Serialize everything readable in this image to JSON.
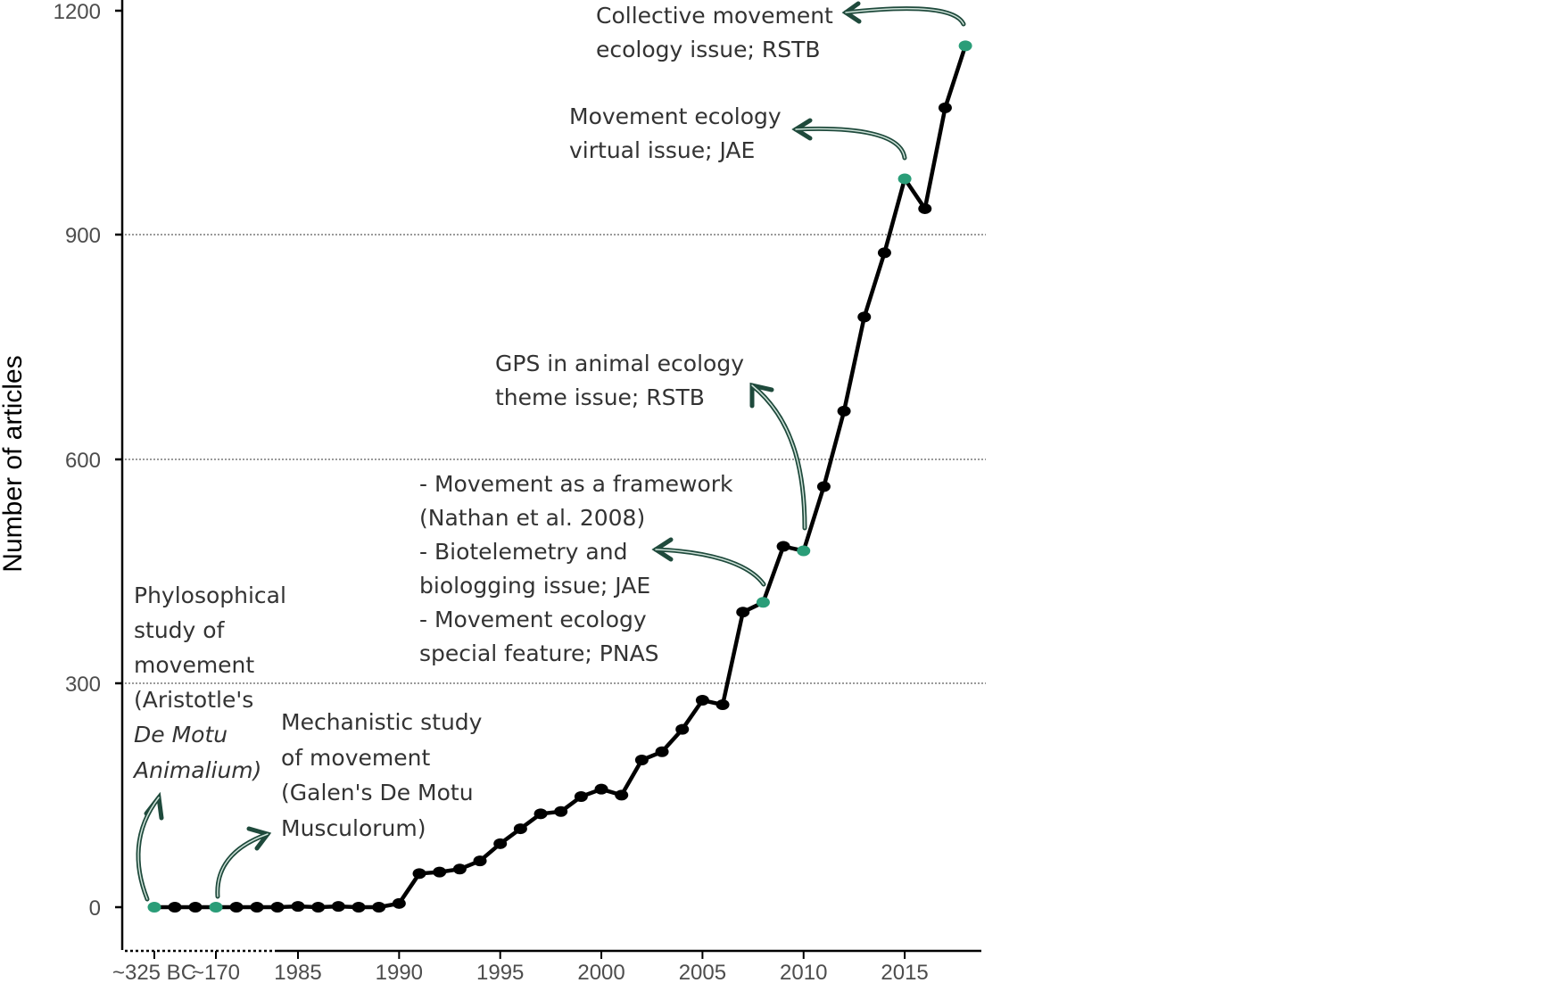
{
  "chart_data": {
    "type": "line",
    "ylabel": "Number of articles",
    "xlabel": "",
    "ylim": [
      -50,
      1200
    ],
    "y_ticks": [
      "0",
      "300",
      "600",
      "900",
      "1200"
    ],
    "x_tick_labels": [
      "~325 BC",
      "~170",
      "1985",
      "1990",
      "1995",
      "2000",
      "2005",
      "2010",
      "2015"
    ],
    "grid": "horizontal dotted at 300, 600, 900",
    "colors": {
      "line": "#000000",
      "point": "#000000",
      "highlight": "#2a9d78",
      "arrow": "#1f4a3c"
    },
    "pre_modern_points": [
      {
        "x": "~325 BC",
        "y": 0,
        "highlight": true
      },
      {
        "x": "filler",
        "y": 0,
        "highlight": false
      },
      {
        "x": "filler",
        "y": 0,
        "highlight": false
      },
      {
        "x": "~170",
        "y": 0,
        "highlight": true
      },
      {
        "x": "filler",
        "y": 0,
        "highlight": false
      },
      {
        "x": "filler",
        "y": 0,
        "highlight": false
      },
      {
        "x": "filler",
        "y": 0,
        "highlight": false
      }
    ],
    "series": [
      {
        "x": [
          1985,
          1986,
          1987,
          1988,
          1989,
          1990,
          1991,
          1992,
          1993,
          1994,
          1995,
          1996,
          1997,
          1998,
          1999,
          2000,
          2001,
          2002,
          2003,
          2004,
          2005,
          2006,
          2007,
          2008,
          2009,
          2010,
          2011,
          2012,
          2013,
          2014,
          2015,
          2016,
          2017,
          2018
        ],
        "values": [
          1,
          0,
          1,
          0,
          0,
          5,
          45,
          47,
          51,
          62,
          85,
          105,
          125,
          128,
          148,
          158,
          150,
          197,
          208,
          238,
          277,
          271,
          395,
          408,
          483,
          477,
          563,
          664,
          790,
          876,
          975,
          935,
          1070,
          1153
        ],
        "highlight_years": [
          2008,
          2010,
          2015,
          2018
        ]
      }
    ],
    "annotations": [
      {
        "lines": [
          "Phylosophical",
          "study of",
          "movement",
          "(Aristotle's",
          "De Motu",
          "Animalium)"
        ],
        "target": "~325 BC"
      },
      {
        "lines": [
          "Mechanistic study",
          "of movement",
          "(Galen's De Motu",
          "Musculorum)"
        ],
        "target": "~170"
      },
      {
        "lines": [
          "- Movement as a framework",
          "(Nathan et al. 2008)",
          "- Biotelemetry and",
          "biologging issue; JAE",
          "- Movement ecology",
          "special feature; PNAS"
        ],
        "target": "2008"
      },
      {
        "lines": [
          "GPS in animal ecology",
          "theme issue; RSTB"
        ],
        "target": "2010"
      },
      {
        "lines": [
          "Movement ecology",
          "virtual issue; JAE"
        ],
        "target": "2015"
      },
      {
        "lines": [
          "Collective movement",
          "ecology issue; RSTB"
        ],
        "target": "2018"
      }
    ]
  }
}
